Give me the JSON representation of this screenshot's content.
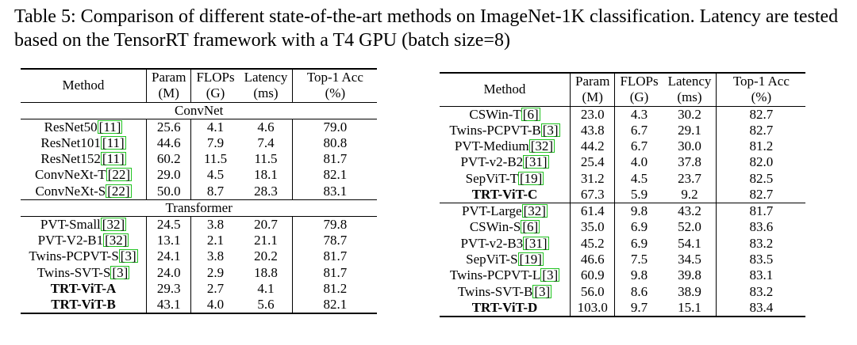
{
  "caption": "Table 5: Comparison of different state-of-the-art methods on ImageNet-1K classification. Latency are tested based on the TensorRT framework with a T4 GPU (batch size=8)",
  "columns": {
    "method": "Method",
    "param": [
      "Param",
      "(M)"
    ],
    "flops": [
      "FLOPs",
      "(G)"
    ],
    "latency": [
      "Latency",
      "(ms)"
    ],
    "top1": [
      "Top-1 Acc",
      "(%)"
    ]
  },
  "left_table": {
    "section_convnet": "ConvNet",
    "section_transformer": "Transformer",
    "convnet_rows": [
      {
        "name": "ResNet50",
        "ref": "11",
        "param": "25.6",
        "flops": "4.1",
        "latency": "4.6",
        "top1": "79.0"
      },
      {
        "name": "ResNet101",
        "ref": "11",
        "param": "44.6",
        "flops": "7.9",
        "latency": "7.4",
        "top1": "80.8"
      },
      {
        "name": "ResNet152",
        "ref": "11",
        "param": "60.2",
        "flops": "11.5",
        "latency": "11.5",
        "top1": "81.7"
      },
      {
        "name": "ConvNeXt-T",
        "ref": "22",
        "param": "29.0",
        "flops": "4.5",
        "latency": "18.1",
        "top1": "82.1"
      },
      {
        "name": "ConvNeXt-S",
        "ref": "22",
        "param": "50.0",
        "flops": "8.7",
        "latency": "28.3",
        "top1": "83.1"
      }
    ],
    "transformer_rows": [
      {
        "name": "PVT-Small",
        "ref": "32",
        "param": "24.5",
        "flops": "3.8",
        "latency": "20.7",
        "top1": "79.8"
      },
      {
        "name": "PVT-V2-B1",
        "ref": "32",
        "param": "13.1",
        "flops": "2.1",
        "latency": "21.1",
        "top1": "78.7"
      },
      {
        "name": "Twins-PCPVT-S",
        "ref": "3",
        "param": "24.1",
        "flops": "3.8",
        "latency": "20.2",
        "top1": "81.7"
      },
      {
        "name": "Twins-SVT-S",
        "ref": "3",
        "param": "24.0",
        "flops": "2.9",
        "latency": "18.8",
        "top1": "81.7"
      },
      {
        "name": "TRT-ViT-A",
        "ref": "",
        "param": "29.3",
        "flops": "2.7",
        "latency": "4.1",
        "top1": "81.2"
      },
      {
        "name": "TRT-ViT-B",
        "ref": "",
        "param": "43.1",
        "flops": "4.0",
        "latency": "5.6",
        "top1": "82.1"
      }
    ]
  },
  "right_table": {
    "group1": [
      {
        "name": "CSWin-T",
        "ref": "6",
        "param": "23.0",
        "flops": "4.3",
        "latency": "30.2",
        "top1": "82.7"
      },
      {
        "name": "Twins-PCPVT-B",
        "ref": "3",
        "param": "43.8",
        "flops": "6.7",
        "latency": "29.1",
        "top1": "82.7"
      },
      {
        "name": "PVT-Medium",
        "ref": "32",
        "param": "44.2",
        "flops": "6.7",
        "latency": "30.0",
        "top1": "81.2"
      },
      {
        "name": "PVT-v2-B2",
        "ref": "31",
        "param": "25.4",
        "flops": "4.0",
        "latency": "37.8",
        "top1": "82.0"
      },
      {
        "name": "SepViT-T",
        "ref": "19",
        "param": "31.2",
        "flops": "4.5",
        "latency": "23.7",
        "top1": "82.5"
      },
      {
        "name": "TRT-ViT-C",
        "ref": "",
        "param": "67.3",
        "flops": "5.9",
        "latency": "9.2",
        "top1": "82.7"
      }
    ],
    "group2": [
      {
        "name": "PVT-Large",
        "ref": "32",
        "param": "61.4",
        "flops": "9.8",
        "latency": "43.2",
        "top1": "81.7"
      },
      {
        "name": "CSWin-S",
        "ref": "6",
        "param": "35.0",
        "flops": "6.9",
        "latency": "52.0",
        "top1": "83.6"
      },
      {
        "name": "PVT-v2-B3",
        "ref": "31",
        "param": "45.2",
        "flops": "6.9",
        "latency": "54.1",
        "top1": "83.2"
      },
      {
        "name": "SepViT-S",
        "ref": "19",
        "param": "46.6",
        "flops": "7.5",
        "latency": "34.5",
        "top1": "83.5"
      },
      {
        "name": "Twins-PCPVT-L",
        "ref": "3",
        "param": "60.9",
        "flops": "9.8",
        "latency": "39.8",
        "top1": "83.1"
      },
      {
        "name": "Twins-SVT-B",
        "ref": "3",
        "param": "56.0",
        "flops": "8.6",
        "latency": "38.9",
        "top1": "83.2"
      },
      {
        "name": "TRT-ViT-D",
        "ref": "",
        "param": "103.0",
        "flops": "9.7",
        "latency": "15.1",
        "top1": "83.4"
      }
    ]
  },
  "colors": {
    "citation_box": "#1fc21f",
    "text": "#000000"
  }
}
